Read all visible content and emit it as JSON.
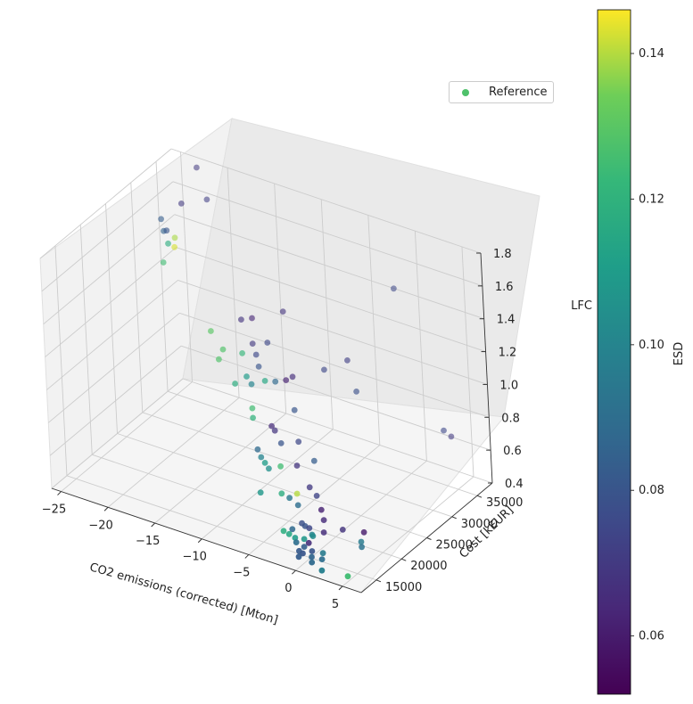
{
  "chart_data": {
    "type": "scatter",
    "projection": "3d",
    "xlabel": "CO2 emissions (corrected) [Mton]",
    "ylabel": "Cost [kEUR]",
    "zlabel": "LFC",
    "x_ticks": [
      -25,
      -20,
      -15,
      -10,
      -5,
      0,
      5
    ],
    "y_ticks": [
      15000,
      20000,
      25000,
      30000,
      35000
    ],
    "z_ticks": [
      0.4,
      0.6,
      0.8,
      1.0,
      1.2,
      1.4,
      1.6,
      1.8
    ],
    "x_tick_labels": [
      "−25",
      "−20",
      "−15",
      "−10",
      "−5",
      "0",
      "5"
    ],
    "y_tick_labels": [
      "15000",
      "20000",
      "25000",
      "30000",
      "35000"
    ],
    "z_tick_labels": [
      "0.4",
      "0.6",
      "0.8",
      "1.0",
      "1.2",
      "1.4",
      "1.6",
      "1.8"
    ],
    "xlim": [
      -26,
      7
    ],
    "ylim": [
      12000,
      38000
    ],
    "zlim": [
      0.4,
      1.8
    ],
    "grid": true,
    "legend": {
      "placement": "top-right",
      "entries": [
        {
          "label": "Reference",
          "color": "#4fc16b"
        }
      ]
    },
    "colorbar": {
      "label": "ESD",
      "range": [
        0.052,
        0.146
      ],
      "ticks": [
        0.06,
        0.08,
        0.1,
        0.12,
        0.14
      ],
      "tick_labels": [
        "0.06",
        "0.08",
        "0.10",
        "0.12",
        "0.14"
      ],
      "colormap": "viridis"
    },
    "series": [
      {
        "name": "Reference",
        "color_by": "ESD",
        "points": [
          {
            "x": -23.5,
            "y": 31000,
            "z": 1.6,
            "esd": 0.083
          },
          {
            "x": -23.0,
            "y": 30500,
            "z": 1.55,
            "esd": 0.085
          },
          {
            "x": -22.5,
            "y": 30200,
            "z": 1.57,
            "esd": 0.08
          },
          {
            "x": -22.3,
            "y": 30000,
            "z": 1.5,
            "esd": 0.118
          },
          {
            "x": -22.0,
            "y": 30800,
            "z": 1.52,
            "esd": 0.139
          },
          {
            "x": -21.8,
            "y": 30300,
            "z": 1.48,
            "esd": 0.143
          },
          {
            "x": -22.8,
            "y": 29800,
            "z": 1.38,
            "esd": 0.125
          },
          {
            "x": -21.5,
            "y": 31500,
            "z": 1.72,
            "esd": 0.07
          },
          {
            "x": -19.0,
            "y": 32000,
            "z": 1.78,
            "esd": 0.072
          },
          {
            "x": -20.5,
            "y": 33000,
            "z": 1.92,
            "esd": 0.07
          },
          {
            "x": -17.0,
            "y": 28000,
            "z": 1.12,
            "esd": 0.13
          },
          {
            "x": -15.5,
            "y": 27500,
            "z": 1.05,
            "esd": 0.128
          },
          {
            "x": -14.5,
            "y": 29500,
            "z": 1.2,
            "esd": 0.068
          },
          {
            "x": -13.5,
            "y": 29800,
            "z": 1.22,
            "esd": 0.064
          },
          {
            "x": -13.0,
            "y": 28800,
            "z": 1.1,
            "esd": 0.07
          },
          {
            "x": -12.5,
            "y": 28500,
            "z": 1.05,
            "esd": 0.075
          },
          {
            "x": -12.0,
            "y": 28000,
            "z": 1.0,
            "esd": 0.08
          },
          {
            "x": -11.5,
            "y": 29000,
            "z": 1.13,
            "esd": 0.075
          },
          {
            "x": -10.5,
            "y": 30500,
            "z": 1.3,
            "esd": 0.068
          },
          {
            "x": -12.8,
            "y": 27000,
            "z": 0.95,
            "esd": 0.11
          },
          {
            "x": -13.8,
            "y": 26500,
            "z": 0.9,
            "esd": 0.118
          },
          {
            "x": -12.2,
            "y": 26800,
            "z": 0.92,
            "esd": 0.1
          },
          {
            "x": -11.0,
            "y": 27300,
            "z": 0.95,
            "esd": 0.115
          },
          {
            "x": -10.0,
            "y": 27500,
            "z": 0.96,
            "esd": 0.088
          },
          {
            "x": -9.0,
            "y": 27800,
            "z": 0.98,
            "esd": 0.062
          },
          {
            "x": -8.5,
            "y": 28200,
            "z": 1.0,
            "esd": 0.066
          },
          {
            "x": -7.5,
            "y": 26500,
            "z": 0.86,
            "esd": 0.08
          },
          {
            "x": -11.5,
            "y": 25500,
            "z": 0.82,
            "esd": 0.125
          },
          {
            "x": -11.2,
            "y": 25000,
            "z": 0.78,
            "esd": 0.12
          },
          {
            "x": -9.5,
            "y": 25500,
            "z": 0.75,
            "esd": 0.065
          },
          {
            "x": -9.0,
            "y": 25200,
            "z": 0.74,
            "esd": 0.068
          },
          {
            "x": -8.0,
            "y": 24500,
            "z": 0.7,
            "esd": 0.08
          },
          {
            "x": -6.5,
            "y": 25200,
            "z": 0.72,
            "esd": 0.075
          },
          {
            "x": -5.5,
            "y": 29000,
            "z": 1.08,
            "esd": 0.075
          },
          {
            "x": -3.5,
            "y": 30000,
            "z": 1.15,
            "esd": 0.072
          },
          {
            "x": -2.0,
            "y": 28800,
            "z": 1.02,
            "esd": 0.078
          },
          {
            "x": 0.5,
            "y": 32500,
            "z": 1.6,
            "esd": 0.075
          },
          {
            "x": -10.0,
            "y": 23500,
            "z": 0.65,
            "esd": 0.088
          },
          {
            "x": -9.5,
            "y": 23200,
            "z": 0.62,
            "esd": 0.1
          },
          {
            "x": -9.0,
            "y": 23000,
            "z": 0.6,
            "esd": 0.11
          },
          {
            "x": -8.5,
            "y": 22800,
            "z": 0.58,
            "esd": 0.105
          },
          {
            "x": -7.5,
            "y": 23300,
            "z": 0.6,
            "esd": 0.125
          },
          {
            "x": -6.0,
            "y": 23800,
            "z": 0.62,
            "esd": 0.068
          },
          {
            "x": -4.5,
            "y": 24500,
            "z": 0.66,
            "esd": 0.083
          },
          {
            "x": -8.5,
            "y": 21000,
            "z": 0.48,
            "esd": 0.108
          },
          {
            "x": -6.5,
            "y": 21500,
            "z": 0.5,
            "esd": 0.118
          },
          {
            "x": -5.0,
            "y": 21800,
            "z": 0.52,
            "esd": 0.14
          },
          {
            "x": -5.5,
            "y": 21200,
            "z": 0.5,
            "esd": 0.094
          },
          {
            "x": -4.5,
            "y": 21000,
            "z": 0.48,
            "esd": 0.09
          },
          {
            "x": -4.0,
            "y": 22500,
            "z": 0.56,
            "esd": 0.07
          },
          {
            "x": -3.0,
            "y": 22000,
            "z": 0.54,
            "esd": 0.074
          },
          {
            "x": -2.0,
            "y": 21000,
            "z": 0.5,
            "esd": 0.062
          },
          {
            "x": -1.5,
            "y": 20500,
            "z": 0.46,
            "esd": 0.065
          },
          {
            "x": -3.5,
            "y": 19800,
            "z": 0.42,
            "esd": 0.078
          },
          {
            "x": -3.0,
            "y": 19500,
            "z": 0.42,
            "esd": 0.08
          },
          {
            "x": -2.5,
            "y": 19400,
            "z": 0.42,
            "esd": 0.075
          },
          {
            "x": -2.0,
            "y": 19000,
            "z": 0.4,
            "esd": 0.1
          },
          {
            "x": -1.8,
            "y": 18800,
            "z": 0.4,
            "esd": 0.103
          },
          {
            "x": -1.0,
            "y": 19500,
            "z": 0.42,
            "esd": 0.066
          },
          {
            "x": 0.5,
            "y": 20500,
            "z": 0.44,
            "esd": 0.068
          },
          {
            "x": 2.5,
            "y": 21000,
            "z": 0.45,
            "esd": 0.06
          },
          {
            "x": -4.0,
            "y": 18800,
            "z": 0.4,
            "esd": 0.088
          },
          {
            "x": -4.5,
            "y": 18000,
            "z": 0.4,
            "esd": 0.118
          },
          {
            "x": -3.8,
            "y": 17800,
            "z": 0.4,
            "esd": 0.115
          },
          {
            "x": -3.0,
            "y": 17500,
            "z": 0.4,
            "esd": 0.11
          },
          {
            "x": -2.2,
            "y": 17800,
            "z": 0.4,
            "esd": 0.108
          },
          {
            "x": -1.5,
            "y": 17400,
            "z": 0.4,
            "esd": 0.066
          },
          {
            "x": -2.5,
            "y": 16800,
            "z": 0.4,
            "esd": 0.09
          },
          {
            "x": -1.5,
            "y": 16500,
            "z": 0.4,
            "esd": 0.084
          },
          {
            "x": -0.5,
            "y": 16200,
            "z": 0.4,
            "esd": 0.08
          },
          {
            "x": 0.5,
            "y": 16500,
            "z": 0.4,
            "esd": 0.096
          },
          {
            "x": -1.5,
            "y": 15500,
            "z": 0.4,
            "esd": 0.082
          },
          {
            "x": -1.0,
            "y": 15300,
            "z": 0.4,
            "esd": 0.08
          },
          {
            "x": 0.0,
            "y": 15200,
            "z": 0.4,
            "esd": 0.086
          },
          {
            "x": 1.0,
            "y": 15400,
            "z": 0.4,
            "esd": 0.09
          },
          {
            "x": -1.0,
            "y": 14500,
            "z": 0.4,
            "esd": 0.083
          },
          {
            "x": 0.5,
            "y": 14300,
            "z": 0.4,
            "esd": 0.088
          },
          {
            "x": 2.0,
            "y": 13500,
            "z": 0.4,
            "esd": 0.098
          },
          {
            "x": 4.5,
            "y": 14000,
            "z": 0.4,
            "esd": 0.125
          },
          {
            "x": 3.0,
            "y": 19500,
            "z": 0.44,
            "esd": 0.096
          },
          {
            "x": 3.2,
            "y": 19200,
            "z": 0.42,
            "esd": 0.092
          },
          {
            "x": 6.0,
            "y": 31000,
            "z": 0.88,
            "esd": 0.075
          },
          {
            "x": 6.5,
            "y": 31500,
            "z": 0.84,
            "esd": 0.07
          },
          {
            "x": -14.0,
            "y": 28500,
            "z": 1.03,
            "esd": 0.122
          },
          {
            "x": -16.0,
            "y": 27500,
            "z": 0.98,
            "esd": 0.128
          }
        ]
      }
    ]
  }
}
